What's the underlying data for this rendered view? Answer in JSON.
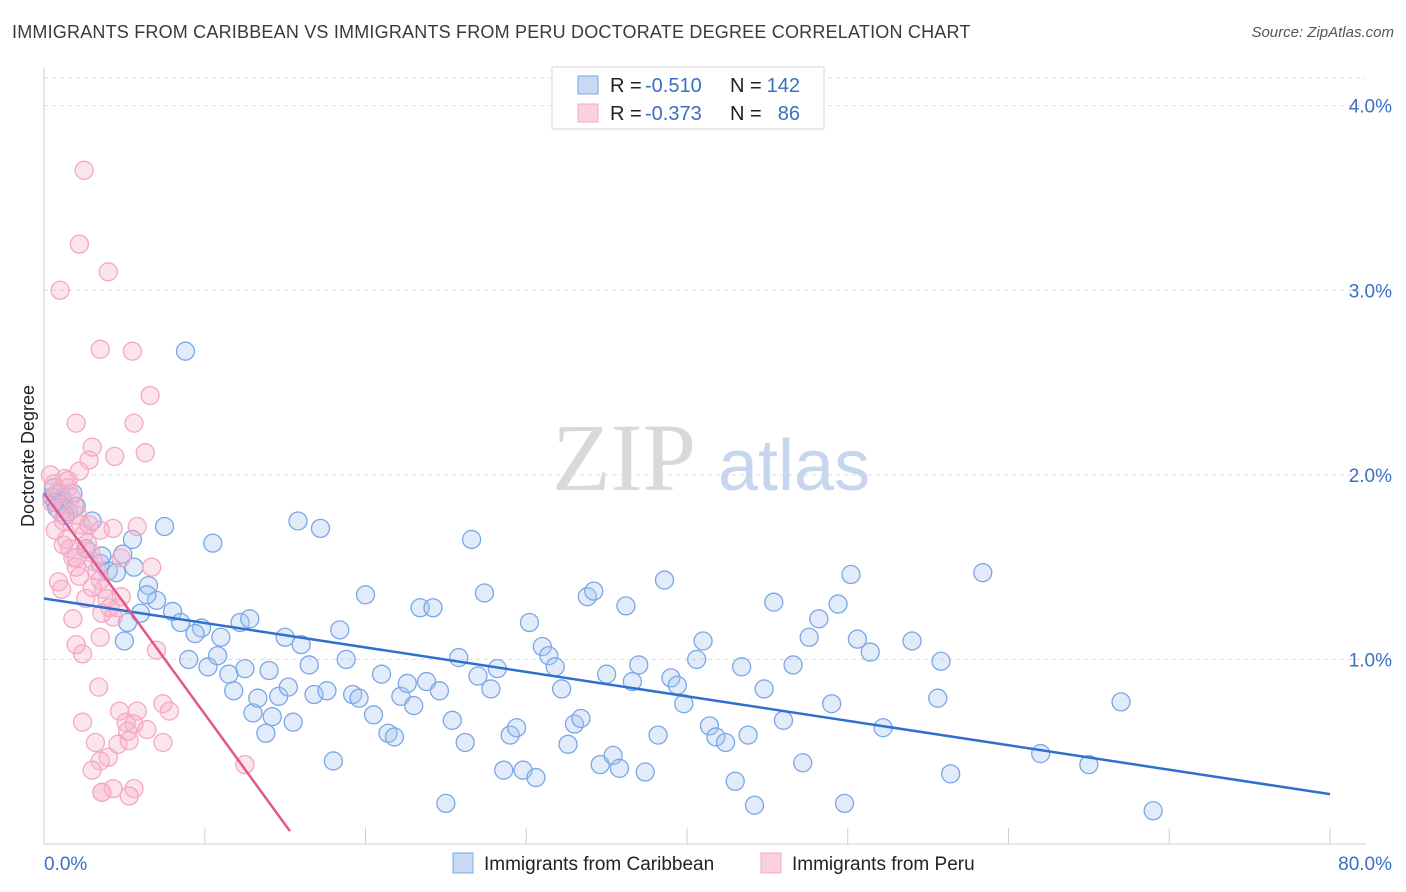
{
  "header": {
    "title": "IMMIGRANTS FROM CARIBBEAN VS IMMIGRANTS FROM PERU DOCTORATE DEGREE CORRELATION CHART",
    "source": "Source: ZipAtlas.com"
  },
  "watermark": {
    "zip": "ZIP",
    "atlas": "atlas"
  },
  "chart_data": {
    "type": "scatter",
    "title": "IMMIGRANTS FROM CARIBBEAN VS IMMIGRANTS FROM PERU DOCTORATE DEGREE CORRELATION CHART",
    "xlabel": "",
    "ylabel": "Doctorate Degree",
    "xlim": [
      0,
      80
    ],
    "ylim": [
      0,
      4.15
    ],
    "x_tick_labels": [
      "0.0%",
      "80.0%"
    ],
    "y_ticks": [
      1.0,
      2.0,
      3.0,
      4.0
    ],
    "y_tick_labels": [
      "1.0%",
      "2.0%",
      "3.0%",
      "4.0%"
    ],
    "grid": true,
    "legend": {
      "placement": "top-center",
      "entries": [
        {
          "r_label": "R =",
          "r": "-0.510",
          "n_label": "N =",
          "n": "142"
        },
        {
          "r_label": "R =",
          "r": "-0.373",
          "n_label": "N =",
          "n": "86"
        }
      ]
    },
    "series": [
      {
        "name": "Immigrants from Caribbean",
        "color": "#7aa7e6",
        "line_color": "#2f6fd0",
        "trend": {
          "x": [
            0,
            80
          ],
          "y": [
            1.33,
            0.27
          ]
        },
        "points": [
          [
            0.5,
            1.88
          ],
          [
            0.7,
            1.85
          ],
          [
            1.0,
            1.9
          ],
          [
            1.2,
            1.86
          ],
          [
            0.8,
            1.82
          ],
          [
            1.5,
            1.8
          ],
          [
            1.8,
            1.9
          ],
          [
            2.0,
            1.83
          ],
          [
            0.6,
            1.93
          ],
          [
            1.3,
            1.78
          ],
          [
            3.0,
            1.75
          ],
          [
            3.5,
            1.52
          ],
          [
            4.0,
            1.48
          ],
          [
            4.5,
            1.47
          ],
          [
            5.0,
            1.1
          ],
          [
            5.5,
            1.65
          ],
          [
            5.2,
            1.2
          ],
          [
            6.0,
            1.25
          ],
          [
            6.5,
            1.4
          ],
          [
            7.0,
            1.32
          ],
          [
            7.5,
            1.72
          ],
          [
            8.0,
            1.26
          ],
          [
            8.5,
            1.2
          ],
          [
            9.0,
            1.0
          ],
          [
            9.8,
            1.17
          ],
          [
            10.2,
            0.96
          ],
          [
            10.5,
            1.63
          ],
          [
            11.0,
            1.12
          ],
          [
            11.5,
            0.92
          ],
          [
            11.8,
            0.83
          ],
          [
            12.2,
            1.2
          ],
          [
            12.5,
            0.95
          ],
          [
            13.0,
            0.71
          ],
          [
            13.3,
            0.79
          ],
          [
            13.8,
            0.6
          ],
          [
            14.2,
            0.69
          ],
          [
            14.6,
            0.8
          ],
          [
            15.0,
            1.12
          ],
          [
            15.5,
            0.66
          ],
          [
            15.8,
            1.75
          ],
          [
            16.0,
            1.08
          ],
          [
            16.5,
            0.97
          ],
          [
            16.8,
            0.81
          ],
          [
            17.2,
            1.71
          ],
          [
            17.6,
            0.83
          ],
          [
            18.0,
            0.45
          ],
          [
            18.4,
            1.16
          ],
          [
            18.8,
            1.0
          ],
          [
            19.2,
            0.81
          ],
          [
            19.6,
            0.79
          ],
          [
            20.0,
            1.35
          ],
          [
            20.5,
            0.7
          ],
          [
            21.0,
            0.92
          ],
          [
            21.4,
            0.6
          ],
          [
            21.8,
            0.58
          ],
          [
            22.2,
            0.8
          ],
          [
            22.6,
            0.87
          ],
          [
            23.0,
            0.75
          ],
          [
            23.4,
            1.28
          ],
          [
            23.8,
            0.88
          ],
          [
            24.2,
            1.28
          ],
          [
            24.6,
            0.83
          ],
          [
            25.0,
            0.22
          ],
          [
            25.4,
            0.67
          ],
          [
            25.8,
            1.01
          ],
          [
            26.2,
            0.55
          ],
          [
            26.6,
            1.65
          ],
          [
            27.0,
            0.91
          ],
          [
            27.4,
            1.36
          ],
          [
            27.8,
            0.84
          ],
          [
            28.2,
            0.95
          ],
          [
            28.6,
            0.4
          ],
          [
            29.0,
            0.59
          ],
          [
            29.4,
            0.63
          ],
          [
            29.8,
            0.4
          ],
          [
            30.2,
            1.2
          ],
          [
            30.6,
            0.36
          ],
          [
            31.0,
            1.07
          ],
          [
            31.4,
            1.02
          ],
          [
            31.8,
            0.96
          ],
          [
            32.2,
            0.84
          ],
          [
            32.6,
            0.54
          ],
          [
            33.0,
            0.65
          ],
          [
            33.4,
            0.68
          ],
          [
            33.8,
            1.34
          ],
          [
            34.2,
            1.37
          ],
          [
            34.6,
            0.43
          ],
          [
            35.0,
            0.92
          ],
          [
            35.4,
            0.48
          ],
          [
            35.8,
            0.41
          ],
          [
            36.2,
            1.29
          ],
          [
            36.6,
            0.88
          ],
          [
            37.0,
            0.97
          ],
          [
            37.4,
            0.39
          ],
          [
            38.2,
            0.59
          ],
          [
            38.6,
            1.43
          ],
          [
            39.0,
            0.9
          ],
          [
            39.4,
            0.86
          ],
          [
            39.8,
            0.76
          ],
          [
            40.6,
            1.0
          ],
          [
            41.0,
            1.1
          ],
          [
            41.4,
            0.64
          ],
          [
            41.8,
            0.58
          ],
          [
            42.4,
            0.55
          ],
          [
            43.0,
            0.34
          ],
          [
            43.4,
            0.96
          ],
          [
            43.8,
            0.59
          ],
          [
            44.2,
            0.21
          ],
          [
            44.8,
            0.84
          ],
          [
            45.4,
            1.31
          ],
          [
            46.0,
            0.67
          ],
          [
            46.6,
            0.97
          ],
          [
            47.2,
            0.44
          ],
          [
            47.6,
            1.12
          ],
          [
            48.2,
            1.22
          ],
          [
            49.0,
            0.76
          ],
          [
            49.4,
            1.3
          ],
          [
            49.8,
            0.22
          ],
          [
            50.2,
            1.46
          ],
          [
            50.6,
            1.11
          ],
          [
            51.4,
            1.04
          ],
          [
            52.2,
            0.63
          ],
          [
            54.0,
            1.1
          ],
          [
            55.6,
            0.79
          ],
          [
            55.8,
            0.99
          ],
          [
            56.4,
            0.38
          ],
          [
            58.4,
            1.47
          ],
          [
            62.0,
            0.49
          ],
          [
            65.0,
            0.43
          ],
          [
            67.0,
            0.77
          ],
          [
            69.0,
            0.18
          ],
          [
            8.8,
            2.67
          ],
          [
            5.6,
            1.5
          ],
          [
            6.4,
            1.35
          ],
          [
            4.9,
            1.57
          ],
          [
            3.6,
            1.56
          ],
          [
            2.6,
            1.6
          ],
          [
            9.4,
            1.14
          ],
          [
            10.8,
            1.02
          ],
          [
            12.8,
            1.22
          ],
          [
            14.0,
            0.94
          ],
          [
            15.2,
            0.85
          ]
        ]
      },
      {
        "name": "Immigrants from Peru",
        "color": "#f4a8c4",
        "line_color": "#e0588c",
        "trend": {
          "x": [
            0,
            15.3
          ],
          "y": [
            1.9,
            0.07
          ]
        },
        "points": [
          [
            0.4,
            2.0
          ],
          [
            0.6,
            1.95
          ],
          [
            0.8,
            1.9
          ],
          [
            0.5,
            1.85
          ],
          [
            1.0,
            1.8
          ],
          [
            1.2,
            1.75
          ],
          [
            0.7,
            1.7
          ],
          [
            1.4,
            1.65
          ],
          [
            1.6,
            1.6
          ],
          [
            1.8,
            1.55
          ],
          [
            2.0,
            1.5
          ],
          [
            2.2,
            1.45
          ],
          [
            0.9,
            1.42
          ],
          [
            1.1,
            1.38
          ],
          [
            1.3,
            1.98
          ],
          [
            1.5,
            1.93
          ],
          [
            1.7,
            1.88
          ],
          [
            1.9,
            1.83
          ],
          [
            2.1,
            1.78
          ],
          [
            2.3,
            1.73
          ],
          [
            2.5,
            1.68
          ],
          [
            2.7,
            1.63
          ],
          [
            2.9,
            1.58
          ],
          [
            3.1,
            1.53
          ],
          [
            3.3,
            1.48
          ],
          [
            3.5,
            1.43
          ],
          [
            3.7,
            1.38
          ],
          [
            3.9,
            1.33
          ],
          [
            4.1,
            1.28
          ],
          [
            4.3,
            1.23
          ],
          [
            1.0,
            3.0
          ],
          [
            2.5,
            3.65
          ],
          [
            2.2,
            3.25
          ],
          [
            4.0,
            3.1
          ],
          [
            3.5,
            2.68
          ],
          [
            5.5,
            2.67
          ],
          [
            6.6,
            2.43
          ],
          [
            2.0,
            2.28
          ],
          [
            5.6,
            2.28
          ],
          [
            3.0,
            2.15
          ],
          [
            4.4,
            2.1
          ],
          [
            6.3,
            2.12
          ],
          [
            2.8,
            2.08
          ],
          [
            2.2,
            2.02
          ],
          [
            1.5,
            1.97
          ],
          [
            2.8,
            1.73
          ],
          [
            4.3,
            1.71
          ],
          [
            5.8,
            1.72
          ],
          [
            3.5,
            1.7
          ],
          [
            4.8,
            1.55
          ],
          [
            6.7,
            1.5
          ],
          [
            2.0,
            1.55
          ],
          [
            1.2,
            1.62
          ],
          [
            3.0,
            1.39
          ],
          [
            2.6,
            1.33
          ],
          [
            4.8,
            1.34
          ],
          [
            4.6,
            1.28
          ],
          [
            1.8,
            1.22
          ],
          [
            3.6,
            1.25
          ],
          [
            2.0,
            1.08
          ],
          [
            3.5,
            1.12
          ],
          [
            2.4,
            1.03
          ],
          [
            7.0,
            1.05
          ],
          [
            3.4,
            0.85
          ],
          [
            7.4,
            0.76
          ],
          [
            2.4,
            0.66
          ],
          [
            4.7,
            0.72
          ],
          [
            5.8,
            0.72
          ],
          [
            5.1,
            0.66
          ],
          [
            5.6,
            0.65
          ],
          [
            6.4,
            0.62
          ],
          [
            5.2,
            0.61
          ],
          [
            7.8,
            0.72
          ],
          [
            3.2,
            0.55
          ],
          [
            4.6,
            0.54
          ],
          [
            5.3,
            0.56
          ],
          [
            7.4,
            0.55
          ],
          [
            4.0,
            0.47
          ],
          [
            3.5,
            0.45
          ],
          [
            3.0,
            0.4
          ],
          [
            4.3,
            0.3
          ],
          [
            5.6,
            0.3
          ],
          [
            3.6,
            0.28
          ],
          [
            3.6,
            0.28
          ],
          [
            5.3,
            0.26
          ],
          [
            12.5,
            0.43
          ]
        ]
      }
    ],
    "bottom_legend": [
      "Immigrants from Caribbean",
      "Immigrants from Peru"
    ]
  }
}
